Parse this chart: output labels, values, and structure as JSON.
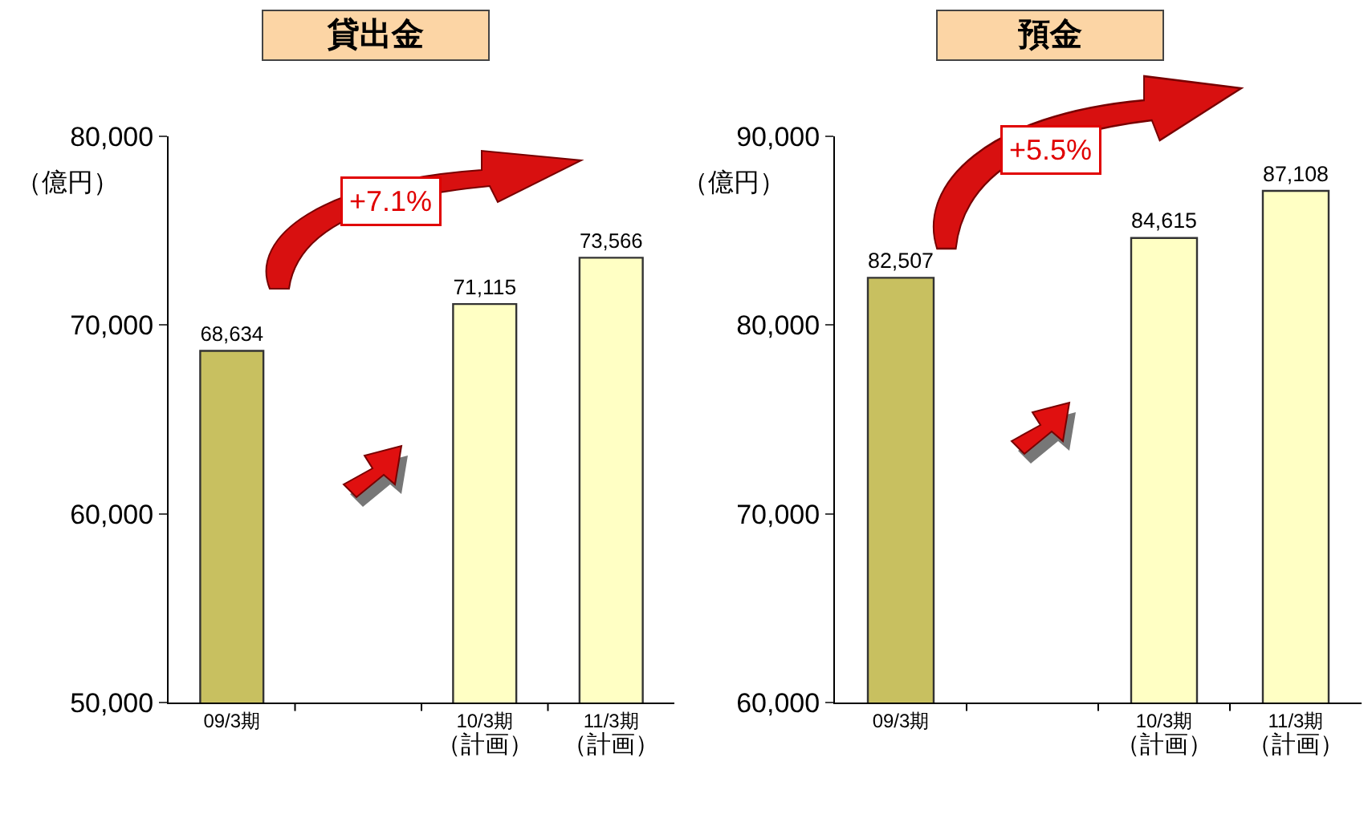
{
  "chart_data": [
    {
      "type": "bar",
      "title": "貸出金",
      "ylabel": "（億円）",
      "categories": [
        "09/3期",
        null,
        "10/3期（計画）",
        "11/3期（計画）"
      ],
      "values": [
        68634,
        null,
        71115,
        73566
      ],
      "value_labels": [
        "68,634",
        null,
        "71,115",
        "73,566"
      ],
      "colors": [
        "#c8c060",
        "#c8c060",
        "#ffffc4",
        "#ffffc4"
      ],
      "ylim": [
        50000,
        80000
      ],
      "yticks": [
        {
          "value": 50000,
          "label": "50,000"
        },
        {
          "value": 60000,
          "label": "60,000"
        },
        {
          "value": 70000,
          "label": "70,000"
        },
        {
          "value": 80000,
          "label": "80,000"
        }
      ],
      "annotations": [
        "+7.1%"
      ],
      "grid": false,
      "legend": false
    },
    {
      "type": "bar",
      "title": "預金",
      "ylabel": "（億円）",
      "categories": [
        "09/3期",
        null,
        "10/3期（計画）",
        "11/3期（計画）"
      ],
      "values": [
        82507,
        null,
        84615,
        87108
      ],
      "value_labels": [
        "82,507",
        null,
        "84,615",
        "87,108"
      ],
      "colors": [
        "#c8c060",
        "#c8c060",
        "#ffffc4",
        "#ffffc4"
      ],
      "ylim": [
        60000,
        90000
      ],
      "yticks": [
        {
          "value": 60000,
          "label": "60,000"
        },
        {
          "value": 70000,
          "label": "70,000"
        },
        {
          "value": 80000,
          "label": "80,000"
        },
        {
          "value": 90000,
          "label": "90,000"
        }
      ],
      "annotations": [
        "+5.5%"
      ],
      "grid": false,
      "legend": false
    }
  ]
}
